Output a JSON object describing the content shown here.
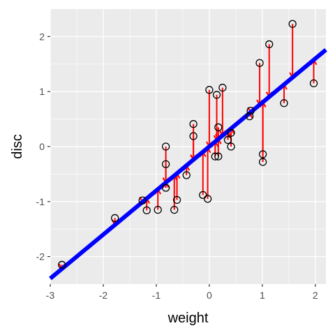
{
  "chart_data": {
    "type": "scatter",
    "xlabel": "weight",
    "ylabel": "disc",
    "xlim": [
      -3,
      2.2
    ],
    "ylim": [
      -2.5,
      2.5
    ],
    "x_ticks": [
      -3,
      -2,
      -1,
      0,
      1,
      2
    ],
    "y_ticks": [
      -2,
      -1,
      0,
      1,
      2
    ],
    "tick_labels_x": [
      "-3",
      "-2",
      "-1",
      "0",
      "1",
      "2"
    ],
    "tick_labels_y": [
      "-2",
      "-1",
      "0",
      "1",
      "2"
    ],
    "grid": true,
    "regression_line": {
      "intercept": 0.0,
      "slope": 0.8,
      "color": "#0000FF"
    },
    "points": [
      {
        "x": -2.78,
        "y": -2.15
      },
      {
        "x": -1.78,
        "y": -1.3
      },
      {
        "x": -1.26,
        "y": -0.98
      },
      {
        "x": -1.18,
        "y": -1.16
      },
      {
        "x": -0.97,
        "y": -1.15
      },
      {
        "x": -0.82,
        "y": 0.0
      },
      {
        "x": -0.82,
        "y": -0.32
      },
      {
        "x": -0.82,
        "y": -0.75
      },
      {
        "x": -0.66,
        "y": -1.15
      },
      {
        "x": -0.61,
        "y": -0.97
      },
      {
        "x": -0.43,
        "y": -0.52
      },
      {
        "x": -0.3,
        "y": 0.41
      },
      {
        "x": -0.3,
        "y": 0.19
      },
      {
        "x": -0.12,
        "y": -0.88
      },
      {
        "x": -0.03,
        "y": -0.95
      },
      {
        "x": 0.0,
        "y": 1.03
      },
      {
        "x": 0.11,
        "y": -0.18
      },
      {
        "x": 0.14,
        "y": 0.94
      },
      {
        "x": 0.17,
        "y": 0.35
      },
      {
        "x": 0.17,
        "y": -0.18
      },
      {
        "x": 0.25,
        "y": 1.07
      },
      {
        "x": 0.35,
        "y": 0.12
      },
      {
        "x": 0.41,
        "y": 0.25
      },
      {
        "x": 0.41,
        "y": 0.0
      },
      {
        "x": 0.76,
        "y": 0.55
      },
      {
        "x": 0.78,
        "y": 0.65
      },
      {
        "x": 0.95,
        "y": 1.52
      },
      {
        "x": 1.01,
        "y": -0.14
      },
      {
        "x": 1.01,
        "y": -0.28
      },
      {
        "x": 1.13,
        "y": 1.86
      },
      {
        "x": 1.41,
        "y": 0.79
      },
      {
        "x": 1.57,
        "y": 2.23
      },
      {
        "x": 1.97,
        "y": 1.15
      }
    ],
    "colors": {
      "panel": "#EBEBEB",
      "grid_major": "#FFFFFF",
      "points": "#000000",
      "residuals": "#FF0000",
      "line": "#0000FF"
    }
  }
}
